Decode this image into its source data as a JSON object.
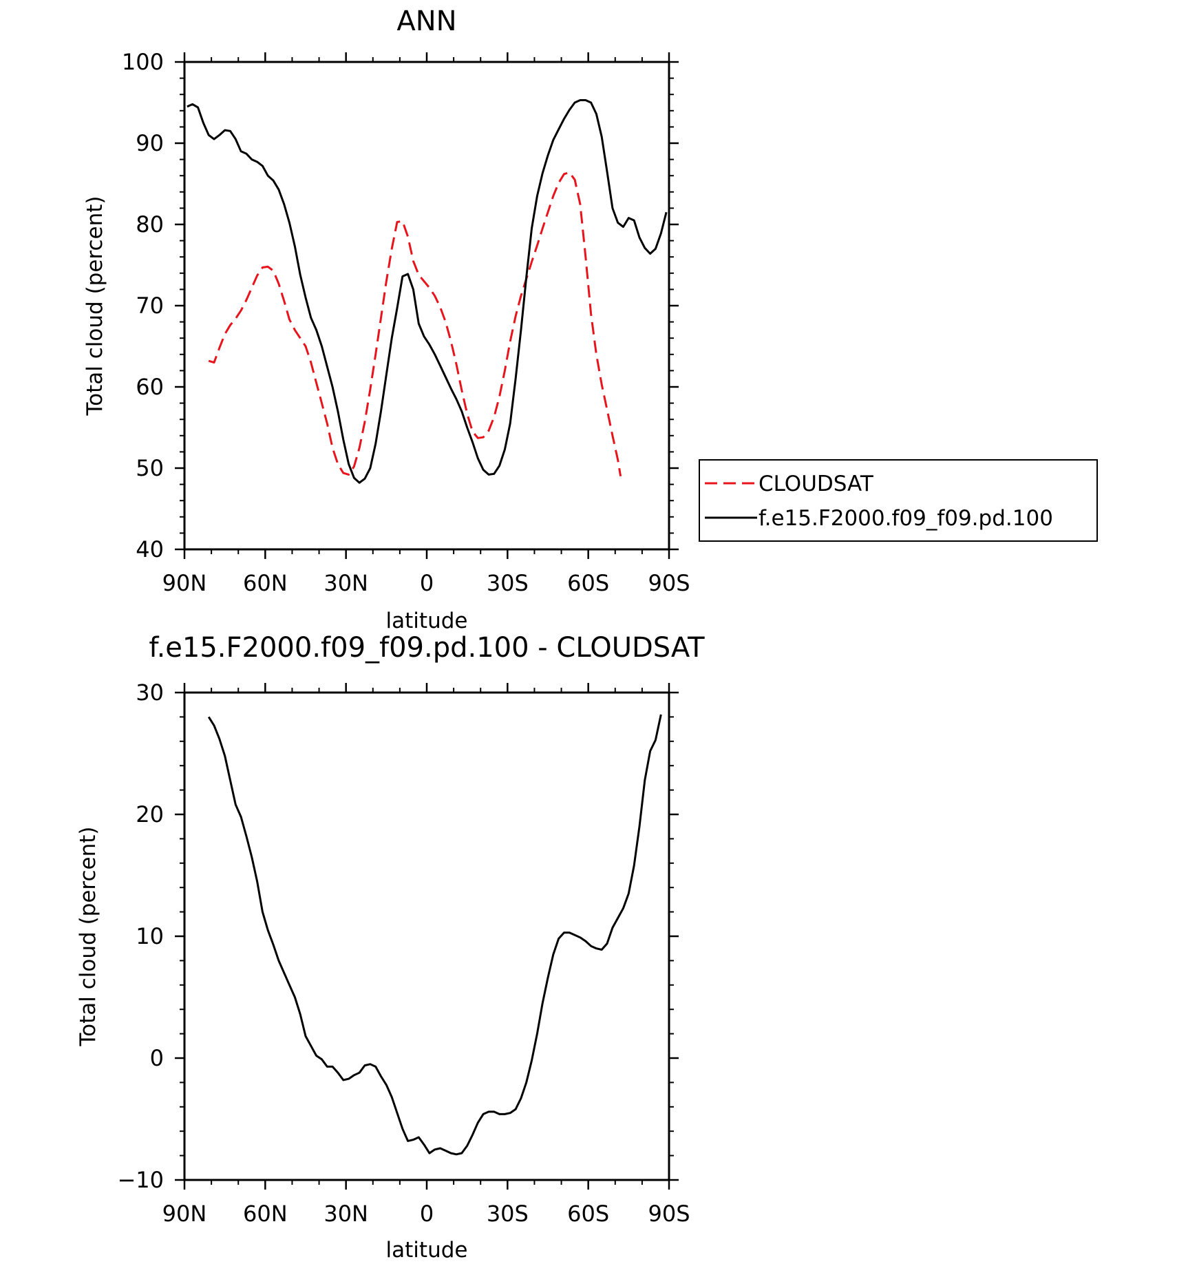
{
  "chart_data": [
    {
      "type": "line",
      "title": "ANN",
      "xlabel": "latitude",
      "ylabel": "Total cloud (percent)",
      "xlim": [
        90,
        -90
      ],
      "ylim": [
        40,
        100
      ],
      "x_ticks": [
        90,
        60,
        30,
        0,
        -30,
        -60,
        -90
      ],
      "x_tick_labels": [
        "90N",
        "60N",
        "30N",
        "0",
        "30S",
        "60S",
        "90S"
      ],
      "y_ticks": [
        40,
        50,
        60,
        70,
        80,
        90,
        100
      ],
      "y_tick_labels": [
        "40",
        "50",
        "60",
        "70",
        "80",
        "90",
        "100"
      ],
      "grid": false,
      "legend_position": "right",
      "series": [
        {
          "name": "CLOUDSAT",
          "color": "#e8141b",
          "dash": "dashed",
          "points": [
            [
              81,
              63.2
            ],
            [
              79,
              63
            ],
            [
              77,
              64.8
            ],
            [
              75,
              66.5
            ],
            [
              73,
              67.6
            ],
            [
              71,
              68.4
            ],
            [
              69,
              69.4
            ],
            [
              67,
              70.7
            ],
            [
              65,
              72.2
            ],
            [
              63,
              73.7
            ],
            [
              61,
              74.7
            ],
            [
              59,
              74.8
            ],
            [
              57,
              74.3
            ],
            [
              55,
              72.7
            ],
            [
              53,
              70.6
            ],
            [
              51,
              68.3
            ],
            [
              49,
              67
            ],
            [
              47,
              66
            ],
            [
              45,
              65
            ],
            [
              43,
              63
            ],
            [
              41,
              60.5
            ],
            [
              39,
              58
            ],
            [
              37,
              55.5
            ],
            [
              35,
              52.5
            ],
            [
              33,
              50.5
            ],
            [
              31,
              49.4
            ],
            [
              29,
              49.2
            ],
            [
              27,
              50.2
            ],
            [
              25,
              52.5
            ],
            [
              23,
              55.7
            ],
            [
              21,
              59.7
            ],
            [
              19,
              64
            ],
            [
              17,
              68.5
            ],
            [
              15,
              73
            ],
            [
              13,
              77
            ],
            [
              11,
              80.3
            ],
            [
              9,
              80.4
            ],
            [
              7,
              78.5
            ],
            [
              5,
              75.5
            ],
            [
              3,
              73.8
            ],
            [
              1,
              73
            ],
            [
              -1,
              72.2
            ],
            [
              -3,
              71.2
            ],
            [
              -5,
              69.8
            ],
            [
              -7,
              68
            ],
            [
              -9,
              65.6
            ],
            [
              -11,
              62.8
            ],
            [
              -13,
              59.6
            ],
            [
              -15,
              56.7
            ],
            [
              -17,
              54.5
            ],
            [
              -19,
              53.7
            ],
            [
              -21,
              53.8
            ],
            [
              -23,
              54.6
            ],
            [
              -25,
              56.3
            ],
            [
              -27,
              58.8
            ],
            [
              -29,
              62
            ],
            [
              -31,
              65.6
            ],
            [
              -33,
              68.7
            ],
            [
              -35,
              71.2
            ],
            [
              -37,
              73.3
            ],
            [
              -39,
              75.4
            ],
            [
              -41,
              77.4
            ],
            [
              -43,
              79.5
            ],
            [
              -45,
              81.5
            ],
            [
              -47,
              83.5
            ],
            [
              -49,
              85.1
            ],
            [
              -51,
              86.2
            ],
            [
              -53,
              86.4
            ],
            [
              -55,
              85.5
            ],
            [
              -57,
              82.5
            ],
            [
              -59,
              76
            ],
            [
              -61,
              69
            ],
            [
              -63,
              64
            ],
            [
              -65,
              60.3
            ],
            [
              -67,
              57.2
            ],
            [
              -69,
              54
            ],
            [
              -71,
              51
            ],
            [
              -72,
              49
            ]
          ]
        },
        {
          "name": "f.e15.F2000.f09_f09.pd.100",
          "color": "#000000",
          "dash": "solid",
          "points": [
            [
              89,
              94.5
            ],
            [
              87,
              94.8
            ],
            [
              85,
              94.4
            ],
            [
              83,
              92.5
            ],
            [
              81,
              91
            ],
            [
              79,
              90.5
            ],
            [
              77,
              91
            ],
            [
              75,
              91.6
            ],
            [
              73,
              91.5
            ],
            [
              71,
              90.5
            ],
            [
              69,
              89
            ],
            [
              67,
              88.7
            ],
            [
              65,
              88
            ],
            [
              63,
              87.7
            ],
            [
              61,
              87.2
            ],
            [
              59,
              86
            ],
            [
              57,
              85.4
            ],
            [
              55,
              84.3
            ],
            [
              53,
              82.5
            ],
            [
              51,
              80.2
            ],
            [
              49,
              77.3
            ],
            [
              47,
              73.8
            ],
            [
              45,
              71
            ],
            [
              43,
              68.5
            ],
            [
              41,
              67
            ],
            [
              39,
              65
            ],
            [
              37,
              62.5
            ],
            [
              35,
              60
            ],
            [
              33,
              57
            ],
            [
              31,
              53.5
            ],
            [
              29,
              50.5
            ],
            [
              27,
              48.8
            ],
            [
              25,
              48.2
            ],
            [
              23,
              48.7
            ],
            [
              21,
              50
            ],
            [
              19,
              53
            ],
            [
              17,
              57
            ],
            [
              15,
              61.5
            ],
            [
              13,
              66
            ],
            [
              11,
              69.7
            ],
            [
              9,
              73.6
            ],
            [
              7,
              73.9
            ],
            [
              5,
              72
            ],
            [
              3,
              67.8
            ],
            [
              1,
              66.2
            ],
            [
              -1,
              65.2
            ],
            [
              -3,
              64
            ],
            [
              -5,
              62.6
            ],
            [
              -7,
              61.2
            ],
            [
              -9,
              59.8
            ],
            [
              -11,
              58.5
            ],
            [
              -13,
              57
            ],
            [
              -15,
              55
            ],
            [
              -17,
              53.2
            ],
            [
              -19,
              51.2
            ],
            [
              -21,
              49.8
            ],
            [
              -23,
              49.2
            ],
            [
              -25,
              49.3
            ],
            [
              -27,
              50.3
            ],
            [
              -29,
              52.3
            ],
            [
              -31,
              55.5
            ],
            [
              -33,
              61
            ],
            [
              -35,
              67
            ],
            [
              -37,
              73.5
            ],
            [
              -39,
              79.5
            ],
            [
              -41,
              83.5
            ],
            [
              -43,
              86.3
            ],
            [
              -45,
              88.5
            ],
            [
              -47,
              90.4
            ],
            [
              -49,
              91.7
            ],
            [
              -51,
              93
            ],
            [
              -53,
              94.1
            ],
            [
              -55,
              95
            ],
            [
              -57,
              95.3
            ],
            [
              -59,
              95.3
            ],
            [
              -61,
              95
            ],
            [
              -63,
              93.6
            ],
            [
              -65,
              90.8
            ],
            [
              -67,
              86.5
            ],
            [
              -69,
              82
            ],
            [
              -71,
              80.2
            ],
            [
              -73,
              79.7
            ],
            [
              -75,
              80.8
            ],
            [
              -77,
              80.5
            ],
            [
              -79,
              78.4
            ],
            [
              -81,
              77.1
            ],
            [
              -83,
              76.4
            ],
            [
              -85,
              77
            ],
            [
              -87,
              78.9
            ],
            [
              -89,
              81.5
            ]
          ]
        }
      ]
    },
    {
      "type": "line",
      "title": "f.e15.F2000.f09_f09.pd.100 - CLOUDSAT",
      "xlabel": "latitude",
      "ylabel": "Total cloud (percent)",
      "xlim": [
        90,
        -90
      ],
      "ylim": [
        -10,
        30
      ],
      "x_ticks": [
        90,
        60,
        30,
        0,
        -30,
        -60,
        -90
      ],
      "x_tick_labels": [
        "90N",
        "60N",
        "30N",
        "0",
        "30S",
        "60S",
        "90S"
      ],
      "y_ticks": [
        -10,
        0,
        10,
        20,
        30
      ],
      "y_tick_labels": [
        "−10",
        "0",
        "10",
        "20",
        "30"
      ],
      "grid": false,
      "series": [
        {
          "color": "#000000",
          "dash": "solid",
          "points": [
            [
              81,
              28
            ],
            [
              79,
              27.3
            ],
            [
              77,
              26.2
            ],
            [
              75,
              24.8
            ],
            [
              73,
              22.8
            ],
            [
              71,
              20.8
            ],
            [
              69,
              19.8
            ],
            [
              67,
              18.2
            ],
            [
              65,
              16.5
            ],
            [
              63,
              14.5
            ],
            [
              61,
              12
            ],
            [
              59,
              10.5
            ],
            [
              57,
              9.3
            ],
            [
              55,
              8
            ],
            [
              53,
              7
            ],
            [
              51,
              6
            ],
            [
              49,
              5
            ],
            [
              47,
              3.6
            ],
            [
              45,
              1.8
            ],
            [
              43,
              1
            ],
            [
              41,
              0.2
            ],
            [
              39,
              -0.1
            ],
            [
              37,
              -0.7
            ],
            [
              35,
              -0.7
            ],
            [
              33,
              -1.2
            ],
            [
              31,
              -1.8
            ],
            [
              29,
              -1.7
            ],
            [
              27,
              -1.4
            ],
            [
              25,
              -1.2
            ],
            [
              23,
              -0.6
            ],
            [
              21,
              -0.5
            ],
            [
              19,
              -0.7
            ],
            [
              17,
              -1.5
            ],
            [
              15,
              -2.2
            ],
            [
              13,
              -3.2
            ],
            [
              11,
              -4.5
            ],
            [
              9,
              -5.8
            ],
            [
              7,
              -6.8
            ],
            [
              5,
              -6.7
            ],
            [
              3,
              -6.5
            ],
            [
              1,
              -7.1
            ],
            [
              -1,
              -7.8
            ],
            [
              -3,
              -7.5
            ],
            [
              -5,
              -7.4
            ],
            [
              -7,
              -7.6
            ],
            [
              -9,
              -7.8
            ],
            [
              -11,
              -7.9
            ],
            [
              -13,
              -7.8
            ],
            [
              -15,
              -7.2
            ],
            [
              -17,
              -6.3
            ],
            [
              -19,
              -5.3
            ],
            [
              -21,
              -4.6
            ],
            [
              -23,
              -4.4
            ],
            [
              -25,
              -4.4
            ],
            [
              -27,
              -4.6
            ],
            [
              -29,
              -4.6
            ],
            [
              -31,
              -4.5
            ],
            [
              -33,
              -4.2
            ],
            [
              -35,
              -3.3
            ],
            [
              -37,
              -2
            ],
            [
              -39,
              -0.2
            ],
            [
              -41,
              2
            ],
            [
              -43,
              4.5
            ],
            [
              -45,
              6.6
            ],
            [
              -47,
              8.5
            ],
            [
              -49,
              9.8
            ],
            [
              -51,
              10.3
            ],
            [
              -53,
              10.3
            ],
            [
              -55,
              10.1
            ],
            [
              -57,
              9.9
            ],
            [
              -59,
              9.6
            ],
            [
              -61,
              9.2
            ],
            [
              -63,
              9
            ],
            [
              -65,
              8.9
            ],
            [
              -67,
              9.4
            ],
            [
              -69,
              10.7
            ],
            [
              -71,
              11.5
            ],
            [
              -73,
              12.3
            ],
            [
              -75,
              13.5
            ],
            [
              -77,
              15.8
            ],
            [
              -79,
              19
            ],
            [
              -81,
              22.8
            ],
            [
              -83,
              25.2
            ],
            [
              -85,
              26.1
            ],
            [
              -87,
              28.2
            ]
          ]
        }
      ]
    }
  ]
}
